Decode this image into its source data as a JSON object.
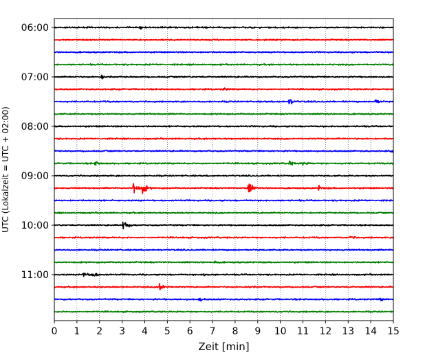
{
  "chart_data": {
    "type": "line",
    "title": "",
    "xlabel": "Zeit  [min]",
    "ylabel": "UTC (Lokalzeit = UTC + 02:00)",
    "xlim": [
      0,
      15
    ],
    "x_ticks": [
      "0",
      "1",
      "2",
      "3",
      "4",
      "5",
      "6",
      "7",
      "8",
      "9",
      "10",
      "11",
      "12",
      "13",
      "14",
      "15"
    ],
    "y_ticks": [
      "06:00",
      "07:00",
      "08:00",
      "09:00",
      "10:00",
      "11:00"
    ],
    "grid": "vertical-dotted",
    "trace_colors": [
      "#000000",
      "#ff0000",
      "#0000ff",
      "#008000"
    ],
    "traces_per_hour": 4,
    "trace_start_times": [
      "06:00",
      "06:15",
      "06:30",
      "06:45",
      "07:00",
      "07:15",
      "07:30",
      "07:45",
      "08:00",
      "08:15",
      "08:30",
      "08:45",
      "09:00",
      "09:15",
      "09:30",
      "09:45",
      "10:00",
      "10:15",
      "10:30",
      "10:45",
      "11:00",
      "11:15",
      "11:30",
      "11:45"
    ],
    "events": [
      {
        "trace": 0,
        "minute": 3.8,
        "amplitude": 0.4
      },
      {
        "trace": 4,
        "minute": 2.1,
        "amplitude": 0.6
      },
      {
        "trace": 5,
        "minute": 7.5,
        "amplitude": 0.3
      },
      {
        "trace": 6,
        "minute": 10.4,
        "amplitude": 0.9
      },
      {
        "trace": 6,
        "minute": 14.2,
        "amplitude": 0.6
      },
      {
        "trace": 10,
        "minute": 14.9,
        "amplitude": 0.3
      },
      {
        "trace": 11,
        "minute": 1.8,
        "amplitude": 0.5
      },
      {
        "trace": 11,
        "minute": 10.4,
        "amplitude": 0.5
      },
      {
        "trace": 11,
        "minute": 11.0,
        "amplitude": 0.4
      },
      {
        "trace": 13,
        "minute": 3.5,
        "amplitude": 2.2
      },
      {
        "trace": 13,
        "minute": 3.9,
        "amplitude": 1.6
      },
      {
        "trace": 13,
        "minute": 8.6,
        "amplitude": 1.8
      },
      {
        "trace": 13,
        "minute": 11.7,
        "amplitude": 0.5
      },
      {
        "trace": 16,
        "minute": 3.05,
        "amplitude": 1.7
      },
      {
        "trace": 17,
        "minute": 13.1,
        "amplitude": 0.3
      },
      {
        "trace": 19,
        "minute": 7.1,
        "amplitude": 0.3
      },
      {
        "trace": 20,
        "minute": 1.3,
        "amplitude": 0.6
      },
      {
        "trace": 20,
        "minute": 1.65,
        "amplitude": 1.1
      },
      {
        "trace": 20,
        "minute": 6.6,
        "amplitude": 0.4
      },
      {
        "trace": 21,
        "minute": 4.65,
        "amplitude": 1.6
      },
      {
        "trace": 21,
        "minute": 8.6,
        "amplitude": 0.4
      },
      {
        "trace": 22,
        "minute": 6.4,
        "amplitude": 0.4
      },
      {
        "trace": 22,
        "minute": 14.4,
        "amplitude": 0.4
      }
    ]
  }
}
